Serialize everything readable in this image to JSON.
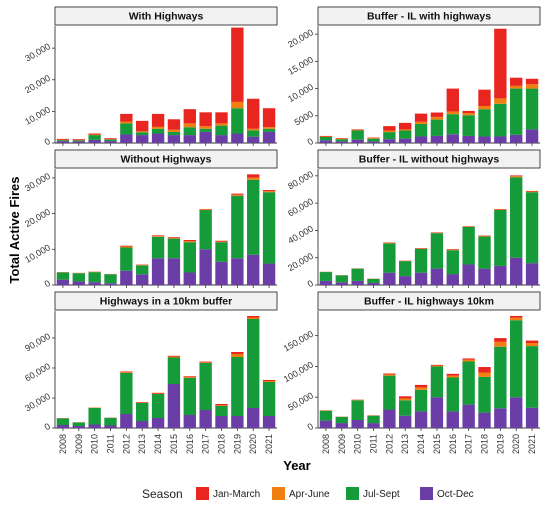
{
  "chart_data": {
    "type": "bar",
    "stacked": true,
    "xlabel": "Year",
    "ylabel": "Total Active Fires",
    "legend": {
      "title": "Season",
      "placement": "bottom",
      "entries": [
        {
          "name": "Jan-March",
          "color": "#e8251f"
        },
        {
          "name": "Apr-June",
          "color": "#f07f12"
        },
        {
          "name": "Jul-Sept",
          "color": "#159b3a"
        },
        {
          "name": "Oct-Dec",
          "color": "#6a3da7"
        }
      ]
    },
    "categories": [
      "2008",
      "2009",
      "2010",
      "2011",
      "2012",
      "2013",
      "2014",
      "2015",
      "2016",
      "2017",
      "2018",
      "2019",
      "2020",
      "2021"
    ],
    "panels": [
      {
        "title": "With Highways",
        "ylim": [
          0,
          37000
        ],
        "yticks": [
          0,
          10000,
          20000,
          30000
        ],
        "ytick_labels": [
          "0",
          "10,000",
          "20,000",
          "30,000"
        ],
        "series": [
          {
            "name": "Oct-Dec",
            "values": [
              600,
              500,
              1000,
              600,
              2700,
              2500,
              3000,
              2500,
              2500,
              3500,
              2500,
              3000,
              2000,
              3500
            ]
          },
          {
            "name": "Jul-Sept",
            "values": [
              300,
              300,
              1500,
              500,
              3500,
              900,
              1500,
              1000,
              2500,
              1000,
              3000,
              8000,
              2000,
              1000
            ]
          },
          {
            "name": "Apr-June",
            "values": [
              100,
              100,
              200,
              100,
              600,
              300,
              600,
              700,
              1200,
              800,
              700,
              2000,
              500,
              500
            ]
          },
          {
            "name": "Jan-March",
            "values": [
              300,
              300,
              300,
              300,
              2400,
              3300,
              4100,
              3300,
              4500,
              4400,
              3500,
              23500,
              9500,
              6000
            ]
          }
        ]
      },
      {
        "title": "Buffer - IL with highways",
        "ylim": [
          0,
          21500
        ],
        "yticks": [
          0,
          5000,
          10000,
          15000,
          20000
        ],
        "ytick_labels": [
          "0",
          "5000",
          "10,000",
          "15,000",
          "20,000"
        ],
        "series": [
          {
            "name": "Oct-Dec",
            "values": [
              500,
              300,
              600,
              300,
              700,
              800,
              1200,
              1300,
              1600,
              1300,
              1200,
              1200,
              1500,
              2500
            ]
          },
          {
            "name": "Jul-Sept",
            "values": [
              600,
              400,
              1700,
              500,
              1300,
              1500,
              2300,
              3000,
              3700,
              3800,
              5000,
              6000,
              8500,
              7500
            ]
          },
          {
            "name": "Apr-June",
            "values": [
              100,
              100,
              100,
              100,
              300,
              200,
              400,
              500,
              500,
              400,
              600,
              1000,
              500,
              800
            ]
          },
          {
            "name": "Jan-March",
            "values": [
              100,
              100,
              100,
              100,
              800,
              1200,
              1500,
              800,
              4200,
              400,
              3000,
              12800,
              1500,
              1000
            ]
          }
        ]
      },
      {
        "title": "Without Highways",
        "ylim": [
          0,
          32500
        ],
        "yticks": [
          0,
          10000,
          20000,
          30000
        ],
        "ytick_labels": [
          "0",
          "10,000",
          "20,000",
          "30,000"
        ],
        "series": [
          {
            "name": "Oct-Dec",
            "values": [
              1500,
              1000,
              800,
              500,
              4000,
              3000,
              7500,
              7500,
              3500,
              10000,
              6500,
              7500,
              8500,
              6000
            ]
          },
          {
            "name": "Jul-Sept",
            "values": [
              2000,
              2300,
              2800,
              2500,
              6500,
              2500,
              6000,
              5500,
              8500,
              11000,
              5500,
              17500,
              21000,
              20000
            ]
          },
          {
            "name": "Apr-June",
            "values": [
              50,
              50,
              100,
              50,
              300,
              150,
              200,
              200,
              300,
              200,
              200,
              300,
              600,
              300
            ]
          },
          {
            "name": "Jan-March",
            "values": [
              50,
              50,
              50,
              50,
              200,
              100,
              200,
              200,
              300,
              100,
              200,
              300,
              900,
              300
            ]
          }
        ]
      },
      {
        "title": "Buffer - IL without highways",
        "ylim": [
          0,
          85000
        ],
        "yticks": [
          0,
          20000,
          40000,
          60000,
          80000
        ],
        "ytick_labels": [
          "0",
          "20,000",
          "40,000",
          "60,000",
          "80,000"
        ],
        "series": [
          {
            "name": "Oct-Dec",
            "values": [
              3000,
              2000,
              3000,
              1500,
              9000,
              6500,
              9000,
              12000,
              8000,
              15000,
              12000,
              14000,
              20000,
              16000
            ]
          },
          {
            "name": "Jul-Sept",
            "values": [
              6500,
              5000,
              9000,
              3000,
              21500,
              11000,
              17500,
              26000,
              17500,
              27500,
              23500,
              41000,
              59000,
              52000
            ]
          },
          {
            "name": "Apr-June",
            "values": [
              100,
              100,
              100,
              100,
              400,
              200,
              300,
              300,
              400,
              300,
              400,
              400,
              800,
              500
            ]
          },
          {
            "name": "Jan-March",
            "values": [
              100,
              100,
              100,
              100,
              300,
              200,
              300,
              300,
              400,
              300,
              300,
              300,
              500,
              400
            ]
          }
        ]
      },
      {
        "title": "Highways in a 10km buffer",
        "ylim": [
          0,
          117000
        ],
        "yticks": [
          0,
          30000,
          60000,
          90000
        ],
        "ytick_labels": [
          "0",
          "30,000",
          "60,000",
          "90,000"
        ],
        "series": [
          {
            "name": "Oct-Dec",
            "values": [
              3000,
              2000,
              3500,
              2500,
              14000,
              7000,
              10000,
              44000,
              13000,
              18000,
              12000,
              12000,
              20000,
              12000
            ]
          },
          {
            "name": "Jul-Sept",
            "values": [
              6500,
              3500,
              16500,
              7500,
              41000,
              18000,
              24000,
              26500,
              37000,
              47000,
              10000,
              59000,
              89000,
              34000
            ]
          },
          {
            "name": "Apr-June",
            "values": [
              200,
              100,
              300,
              200,
              900,
              400,
              500,
              900,
              900,
              700,
              700,
              3000,
              1500,
              1000
            ]
          },
          {
            "name": "Jan-March",
            "values": [
              200,
              100,
              200,
              200,
              600,
              500,
              700,
              800,
              800,
              700,
              1300,
              2000,
              1500,
              1000
            ]
          }
        ]
      },
      {
        "title": "Buffer - IL highways 10km",
        "ylim": [
          0,
          190000
        ],
        "yticks": [
          0,
          50000,
          100000,
          150000
        ],
        "ytick_labels": [
          "0",
          "50,000",
          "100,000",
          "150,000"
        ],
        "series": [
          {
            "name": "Oct-Dec",
            "values": [
              12000,
              8000,
              13000,
              8000,
              30000,
              20000,
              27000,
              50000,
              27000,
              38000,
              25000,
              32000,
              50000,
              33000
            ]
          },
          {
            "name": "Jul-Sept",
            "values": [
              16000,
              10000,
              32000,
              12000,
              55000,
              25000,
              35000,
              50000,
              55000,
              70000,
              58000,
              100000,
              125000,
              100000
            ]
          },
          {
            "name": "Apr-June",
            "values": [
              500,
              300,
              700,
              400,
              2000,
              3000,
              4000,
              1500,
              3000,
              3000,
              7000,
              8000,
              4000,
              5000
            ]
          },
          {
            "name": "Jan-March",
            "values": [
              300,
              200,
              400,
              300,
              1500,
              3500,
              4000,
              1000,
              3000,
              2000,
              9000,
              6000,
              3000,
              4000
            ]
          }
        ]
      }
    ]
  }
}
